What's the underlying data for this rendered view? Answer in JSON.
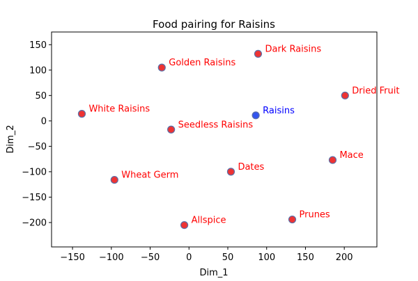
{
  "chart_data": {
    "type": "scatter",
    "title": "Food pairing for Raisins",
    "xlabel": "Dim_1",
    "ylabel": "Dim_2",
    "xlim": [
      -177,
      242
    ],
    "ylim": [
      -248,
      175
    ],
    "xticks": [
      -150,
      -100,
      -50,
      0,
      50,
      100,
      150,
      200
    ],
    "yticks": [
      150,
      100,
      50,
      0,
      -50,
      -100,
      -150,
      -200
    ],
    "colors": {
      "target": "#0000ff",
      "pairing": "#ff0000",
      "marker_fill_target": "#3355ee",
      "marker_fill_pairing": "#ee3333",
      "marker_edge": "#5a6fa8"
    },
    "points": [
      {
        "label": "Raisins",
        "x": 86,
        "y": 11,
        "target": true
      },
      {
        "label": "Dark Raisins",
        "x": 89,
        "y": 132,
        "target": false
      },
      {
        "label": "Golden Raisins",
        "x": -35,
        "y": 105,
        "target": false
      },
      {
        "label": "Dried Fruit",
        "x": 201,
        "y": 50,
        "target": false
      },
      {
        "label": "White Raisins",
        "x": -138,
        "y": 14,
        "target": false
      },
      {
        "label": "Seedless Raisins",
        "x": -23,
        "y": -17,
        "target": false
      },
      {
        "label": "Mace",
        "x": 185,
        "y": -77,
        "target": false
      },
      {
        "label": "Dates",
        "x": 54,
        "y": -100,
        "target": false
      },
      {
        "label": "Wheat Germ",
        "x": -96,
        "y": -116,
        "target": false
      },
      {
        "label": "Prunes",
        "x": 133,
        "y": -194,
        "target": false
      },
      {
        "label": "Allspice",
        "x": -6,
        "y": -205,
        "target": false
      }
    ]
  }
}
